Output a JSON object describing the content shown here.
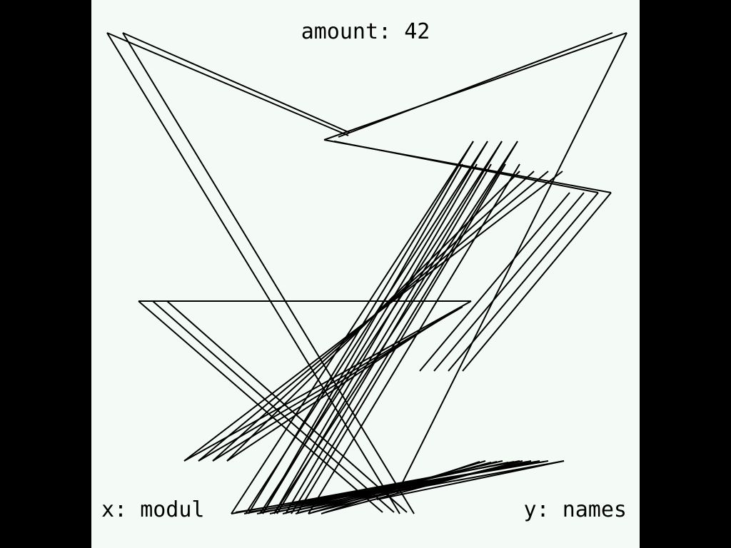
{
  "screen": {
    "background": "#000000",
    "canvas_background": "#f4faf5",
    "stroke_color": "#000000"
  },
  "hud": {
    "amount_label": "amount:",
    "amount_value": "42",
    "x_label": "x:",
    "x_value": "modul",
    "y_label": "y:",
    "y_value": "names"
  }
}
